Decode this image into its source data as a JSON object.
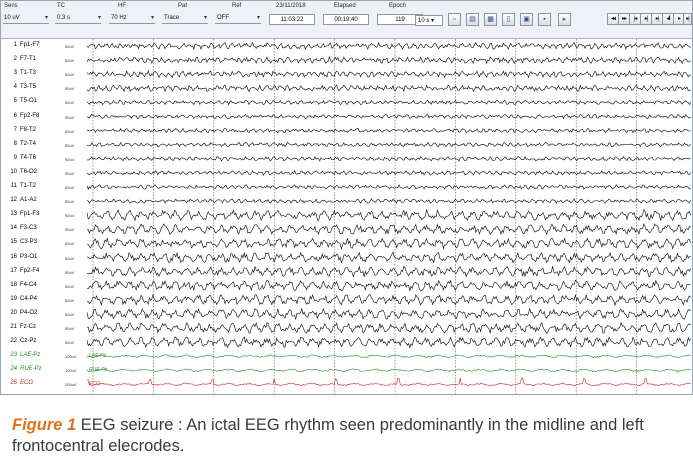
{
  "toolbar": {
    "sens_label": "Sens",
    "sens_value": "10 uV",
    "tc_label": "TC",
    "tc_value": "0.3 s",
    "hf_label": "HF",
    "hf_value": "70 Hz",
    "pat_label": "Pat",
    "pat_value": "Trace",
    "ref_label": "Ref",
    "ref_value": "OFF",
    "date": "23/11/2018",
    "time": "11:03:22",
    "elapsed_label": "Elapsed",
    "elapsed_value": "00:19:40",
    "epoch_label": "Epoch",
    "epoch_value": "119",
    "page_sel": "10 s",
    "icons": [
      "new-page-icon",
      "print-icon",
      "montage-icon",
      "clipboard-icon",
      "report-icon",
      "save-icon",
      "export-icon"
    ],
    "nav_icons": [
      "first",
      "previous",
      "rewind",
      "start",
      "next",
      "back",
      "play",
      "end"
    ],
    "nav_glyphs": [
      "◂◂",
      "▸▸",
      "|◂",
      "▸|",
      "▸|",
      "◂II",
      "▸",
      "▸|"
    ]
  },
  "channels": [
    {
      "num": "1",
      "name": "Fp1-F7",
      "scale": "50uV",
      "color": "#000000"
    },
    {
      "num": "2",
      "name": "F7-T1",
      "scale": "50uV",
      "color": "#000000"
    },
    {
      "num": "3",
      "name": "T1-T3",
      "scale": "50uV",
      "color": "#000000"
    },
    {
      "num": "4",
      "name": "T3-T5",
      "scale": "50uV",
      "color": "#000000"
    },
    {
      "num": "5",
      "name": "T5-O1",
      "scale": "50uV",
      "color": "#000000"
    },
    {
      "num": "6",
      "name": "Fp2-F8",
      "scale": "50uV",
      "color": "#000000"
    },
    {
      "num": "7",
      "name": "F8-T2",
      "scale": "50uV",
      "color": "#000000"
    },
    {
      "num": "8",
      "name": "T2-T4",
      "scale": "50uV",
      "color": "#000000"
    },
    {
      "num": "9",
      "name": "T4-T6",
      "scale": "50uV",
      "color": "#000000"
    },
    {
      "num": "10",
      "name": "T6-O2",
      "scale": "50uV",
      "color": "#000000"
    },
    {
      "num": "11",
      "name": "T1-T2",
      "scale": "50uV",
      "color": "#000000"
    },
    {
      "num": "12",
      "name": "A1-A2",
      "scale": "50uV",
      "color": "#000000"
    },
    {
      "num": "13",
      "name": "Fp1-F3",
      "scale": "50uV",
      "color": "#000000"
    },
    {
      "num": "14",
      "name": "F3-C3",
      "scale": "50uV",
      "color": "#000000"
    },
    {
      "num": "15",
      "name": "C3-P3",
      "scale": "50uV",
      "color": "#000000"
    },
    {
      "num": "16",
      "name": "P3-O1",
      "scale": "50uV",
      "color": "#000000"
    },
    {
      "num": "17",
      "name": "Fp2-F4",
      "scale": "50uV",
      "color": "#000000"
    },
    {
      "num": "18",
      "name": "F4-C4",
      "scale": "50uV",
      "color": "#000000"
    },
    {
      "num": "19",
      "name": "C4-P4",
      "scale": "50uV",
      "color": "#000000"
    },
    {
      "num": "20",
      "name": "P4-O2",
      "scale": "50uV",
      "color": "#000000"
    },
    {
      "num": "21",
      "name": "Fz-Cz",
      "scale": "50uV",
      "color": "#000000"
    },
    {
      "num": "22",
      "name": "Cz-Pz",
      "scale": "50uV",
      "color": "#000000"
    },
    {
      "num": "23",
      "name": "LAE-Pz",
      "scale": "100uV",
      "color": "#2a8a2a",
      "trace_label": "LAE-Pz"
    },
    {
      "num": "24",
      "name": "RUE-Pz",
      "scale": "100uV",
      "color": "#2a8a2a",
      "trace_label": "RUE-Pz"
    },
    {
      "num": "25",
      "name": "ECG",
      "scale": "200uV",
      "color": "#c62828",
      "trace_label": "ECG"
    }
  ],
  "caption": {
    "label": "Figure 1",
    "text": " EEG seizure : An ictal EEG rhythm seen predominantly in the midline and left frontocentral elecrodes."
  }
}
